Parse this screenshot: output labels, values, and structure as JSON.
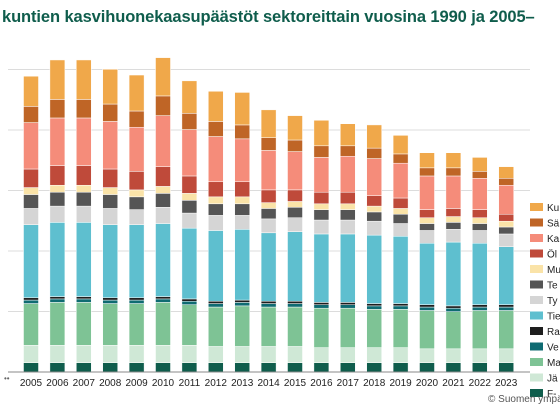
{
  "title": "kuntien kasvihuonekaasupäästöt sektoreittain vuosina 1990 ja 2005–",
  "source": "© Suomen ympä",
  "axis_mark": "••",
  "colors": {
    "gridline": "#dcdcdc",
    "axis": "#8a8a8a"
  },
  "chart_data": {
    "type": "bar",
    "stacked": true,
    "categories": [
      "2005",
      "2006",
      "2007",
      "2008",
      "2009",
      "2010",
      "2011",
      "2012",
      "2013",
      "2014",
      "2015",
      "2016",
      "2017",
      "2018",
      "2019",
      "2020",
      "2021",
      "2022",
      "2023"
    ],
    "grid": true,
    "legend": "right",
    "series": [
      {
        "name": "F-",
        "color": "#0f5d4c",
        "values": [
          8,
          8,
          8,
          8,
          8,
          8,
          8,
          8,
          8,
          8,
          8,
          8,
          8,
          8,
          8,
          8,
          8,
          8,
          8
        ]
      },
      {
        "name": "Jä",
        "color": "#cfe8d6",
        "values": [
          15,
          15,
          15,
          15,
          15,
          15,
          15,
          14,
          14,
          14,
          14,
          13,
          13,
          13,
          13,
          12,
          12,
          12,
          12
        ]
      },
      {
        "name": "Ma",
        "color": "#7ec395",
        "values": [
          36,
          37,
          37,
          36,
          36,
          37,
          35,
          34,
          35,
          34,
          34,
          34,
          34,
          33,
          33,
          33,
          32,
          33,
          33
        ]
      },
      {
        "name": "Ve",
        "color": "#0f6b72",
        "values": [
          3,
          3,
          3,
          3,
          3,
          3,
          3,
          3,
          3,
          3,
          3,
          3,
          3,
          3,
          3,
          3,
          3,
          3,
          3
        ]
      },
      {
        "name": "Ra",
        "color": "#1e1e1e",
        "values": [
          2,
          2,
          2,
          2,
          2,
          2,
          2,
          2,
          2,
          2,
          2,
          2,
          2,
          2,
          2,
          2,
          2,
          2,
          2
        ]
      },
      {
        "name": "Tie",
        "color": "#5ebfcf",
        "values": [
          63,
          64,
          64,
          63,
          63,
          63,
          61,
          61,
          61,
          59,
          60,
          59,
          59,
          59,
          58,
          53,
          55,
          53,
          50
        ]
      },
      {
        "name": "Ty",
        "color": "#d5d5d5",
        "values": [
          14,
          14,
          14,
          14,
          13,
          14,
          13,
          13,
          12,
          12,
          12,
          12,
          12,
          12,
          11,
          11,
          11,
          11,
          11
        ]
      },
      {
        "name": "Te",
        "color": "#555555",
        "values": [
          12,
          12,
          12,
          12,
          11,
          12,
          11,
          10,
          10,
          9,
          9,
          9,
          9,
          8,
          8,
          6,
          6,
          6,
          6
        ]
      },
      {
        "name": "Mu",
        "color": "#fae3a8",
        "values": [
          6,
          6,
          6,
          6,
          6,
          6,
          6,
          6,
          6,
          5,
          5,
          5,
          5,
          5,
          5,
          5,
          5,
          5,
          5
        ]
      },
      {
        "name": "Öl",
        "color": "#bf4a3a",
        "values": [
          16,
          17,
          17,
          16,
          16,
          17,
          15,
          13,
          13,
          11,
          10,
          10,
          10,
          9,
          9,
          7,
          7,
          7,
          6
        ]
      },
      {
        "name": "Ka",
        "color": "#f58c7a",
        "values": [
          40,
          41,
          41,
          41,
          38,
          44,
          40,
          39,
          37,
          34,
          33,
          30,
          31,
          32,
          30,
          29,
          28,
          27,
          25
        ]
      },
      {
        "name": "Sä",
        "color": "#bf6526",
        "values": [
          14,
          16,
          16,
          15,
          14,
          17,
          14,
          13,
          12,
          11,
          10,
          10,
          9,
          9,
          8,
          7,
          7,
          6,
          6
        ]
      },
      {
        "name": "Ku",
        "color": "#f0a84a",
        "values": [
          26,
          34,
          34,
          30,
          31,
          33,
          28,
          26,
          28,
          24,
          21,
          22,
          19,
          20,
          16,
          13,
          13,
          12,
          10
        ]
      }
    ]
  }
}
